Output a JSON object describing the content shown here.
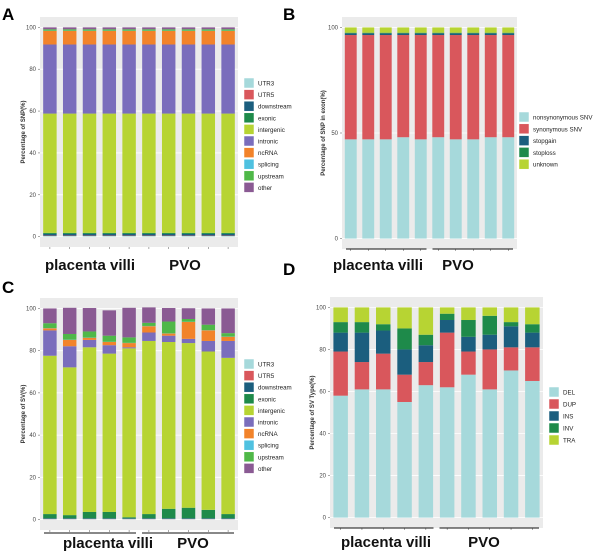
{
  "chart_data": [
    {
      "panel": "A",
      "type": "bar",
      "stacked": true,
      "ylabel": "Percentage of SNP(%)",
      "ylim": [
        0,
        100
      ],
      "yticks": [
        "0",
        "20",
        "40",
        "60",
        "80",
        "100"
      ],
      "groups": [
        "placenta villi",
        "PVO"
      ],
      "bars_per_group": 5,
      "series": [
        {
          "name": "UTR3",
          "color": "#a6d9db",
          "values": [
            0.3,
            0.3,
            0.3,
            0.3,
            0.3,
            0.3,
            0.3,
            0.3,
            0.3,
            0.3
          ]
        },
        {
          "name": "UTR5",
          "color": "#d9575c",
          "values": [
            0.2,
            0.2,
            0.2,
            0.2,
            0.2,
            0.2,
            0.2,
            0.2,
            0.2,
            0.2
          ]
        },
        {
          "name": "downstream",
          "color": "#1b5e7e",
          "values": [
            0.8,
            0.8,
            0.8,
            0.8,
            0.8,
            0.8,
            0.8,
            0.8,
            0.8,
            0.8
          ]
        },
        {
          "name": "exonic",
          "color": "#1e8a4a",
          "values": [
            0.5,
            0.5,
            0.5,
            0.5,
            0.5,
            0.5,
            0.5,
            0.5,
            0.5,
            0.5
          ]
        },
        {
          "name": "intergenic",
          "color": "#b7d433",
          "values": [
            57,
            57,
            57,
            57,
            57,
            57,
            57,
            57,
            57,
            57
          ]
        },
        {
          "name": "intronic",
          "color": "#7a6dbc",
          "values": [
            33,
            33,
            33,
            33,
            33,
            33,
            33,
            33,
            33,
            33
          ]
        },
        {
          "name": "ncRNA",
          "color": "#f2832a",
          "values": [
            6.5,
            6.5,
            6.5,
            6.5,
            6.5,
            6.5,
            6.5,
            6.5,
            6.5,
            6.5
          ]
        },
        {
          "name": "splicing",
          "color": "#4fc1e0",
          "values": [
            0.1,
            0.1,
            0.1,
            0.1,
            0.1,
            0.1,
            0.1,
            0.1,
            0.1,
            0.1
          ]
        },
        {
          "name": "upstream",
          "color": "#4fb848",
          "values": [
            0.7,
            0.7,
            0.7,
            0.7,
            0.7,
            0.7,
            0.7,
            0.7,
            0.7,
            0.7
          ]
        },
        {
          "name": "other",
          "color": "#8a5a93",
          "values": [
            0.9,
            0.9,
            0.9,
            0.9,
            0.9,
            0.9,
            0.9,
            0.9,
            0.9,
            0.9
          ]
        }
      ]
    },
    {
      "panel": "B",
      "type": "bar",
      "stacked": true,
      "ylabel": "Percentage of SNP in exon(%)",
      "ylim": [
        0,
        100
      ],
      "yticks": [
        "0",
        "50",
        "100"
      ],
      "groups": [
        "placenta villi",
        "PVO"
      ],
      "bars_per_group": 5,
      "series": [
        {
          "name": "nonsynonymous SNV",
          "color": "#a6d9db",
          "values": [
            47,
            47,
            47,
            48,
            47,
            48,
            47,
            47,
            48,
            48
          ]
        },
        {
          "name": "synonymous SNV",
          "color": "#d9575c",
          "values": [
            49.4,
            49.4,
            49.4,
            48.4,
            49.4,
            48.4,
            49.4,
            49.4,
            48.4,
            48.4
          ]
        },
        {
          "name": "stopgain",
          "color": "#1b5e7e",
          "values": [
            0.8,
            0.8,
            0.8,
            0.8,
            0.8,
            0.8,
            0.8,
            0.8,
            0.8,
            0.8
          ]
        },
        {
          "name": "stoploss",
          "color": "#1e8a4a",
          "values": [
            0.3,
            0.3,
            0.3,
            0.3,
            0.3,
            0.3,
            0.3,
            0.3,
            0.3,
            0.3
          ]
        },
        {
          "name": "unknown",
          "color": "#b7d433",
          "values": [
            2.5,
            2.5,
            2.5,
            2.5,
            2.5,
            2.5,
            2.5,
            2.5,
            2.5,
            2.5
          ]
        }
      ]
    },
    {
      "panel": "C",
      "type": "bar",
      "stacked": true,
      "ylabel": "Percentage of SV(%)",
      "ylim": [
        0,
        100
      ],
      "yticks": [
        "0",
        "20",
        "40",
        "60",
        "80",
        "100"
      ],
      "groups": [
        "placenta villi",
        "PVO"
      ],
      "bars_per_group": 5,
      "series": [
        {
          "name": "UTR3",
          "color": "#a6d9db",
          "values": [
            0.2,
            0.2,
            0.2,
            0.2,
            0.2,
            0.2,
            0.2,
            0.2,
            0.2,
            0.2
          ]
        },
        {
          "name": "UTR5",
          "color": "#d9575c",
          "values": [
            0.1,
            0.1,
            0.1,
            0.1,
            0.1,
            0.1,
            0.1,
            0.1,
            0.1,
            0.1
          ]
        },
        {
          "name": "downstream",
          "color": "#1b5e7e",
          "values": [
            0.3,
            0.3,
            0.3,
            0.3,
            0.3,
            0.3,
            0.3,
            0.3,
            0.3,
            0.3
          ]
        },
        {
          "name": "exonic",
          "color": "#1e8a4a",
          "values": [
            2,
            1.5,
            3,
            3,
            0.5,
            2,
            4.5,
            5,
            4,
            2
          ]
        },
        {
          "name": "intergenic",
          "color": "#b7d433",
          "values": [
            75,
            70,
            78,
            75,
            80,
            82,
            79,
            78,
            75,
            74
          ]
        },
        {
          "name": "intronic",
          "color": "#7a6dbc",
          "values": [
            12,
            10,
            3.5,
            4,
            0.5,
            4,
            3,
            2,
            5,
            8
          ]
        },
        {
          "name": "ncRNA",
          "color": "#f2832a",
          "values": [
            1,
            3,
            1,
            1.5,
            2,
            3,
            1,
            8,
            5,
            2
          ]
        },
        {
          "name": "splicing",
          "color": "#4fc1e0",
          "values": [
            0.1,
            0.1,
            0.1,
            0.1,
            0.1,
            0.1,
            0.1,
            0.1,
            0.1,
            0.1
          ]
        },
        {
          "name": "upstream",
          "color": "#4fb848",
          "values": [
            2.3,
            2.7,
            2.9,
            2.9,
            2.6,
            1.5,
            5.6,
            1.3,
            2.6,
            1.6
          ]
        },
        {
          "name": "other",
          "color": "#8a5a93",
          "values": [
            7,
            12.4,
            11.1,
            12,
            14,
            7.3,
            6.4,
            5.1,
            7.7,
            11.7
          ]
        }
      ]
    },
    {
      "panel": "D",
      "type": "bar",
      "stacked": true,
      "ylabel": "Percentage of SV Type(%)",
      "ylim": [
        0,
        100
      ],
      "yticks": [
        "0",
        "20",
        "40",
        "60",
        "80",
        "100"
      ],
      "groups": [
        "placenta villi",
        "PVO"
      ],
      "bars_per_group": 5,
      "series": [
        {
          "name": "DEL",
          "color": "#a6d9db",
          "values": [
            58,
            61,
            61,
            55,
            63,
            62,
            68,
            61,
            70,
            65
          ]
        },
        {
          "name": "DUP",
          "color": "#d9575c",
          "values": [
            21,
            13,
            17,
            13,
            11,
            26,
            11,
            19,
            11,
            16
          ]
        },
        {
          "name": "INS",
          "color": "#1b5e7e",
          "values": [
            9,
            14,
            11,
            12,
            8,
            6,
            7,
            7,
            10,
            7
          ]
        },
        {
          "name": "INV",
          "color": "#1e8a4a",
          "values": [
            5,
            5,
            3,
            10,
            5,
            3,
            8,
            9,
            2,
            4
          ]
        },
        {
          "name": "TRA",
          "color": "#b7d433",
          "values": [
            7,
            7,
            8,
            10,
            13,
            3,
            6,
            4,
            7,
            8
          ]
        }
      ]
    }
  ]
}
